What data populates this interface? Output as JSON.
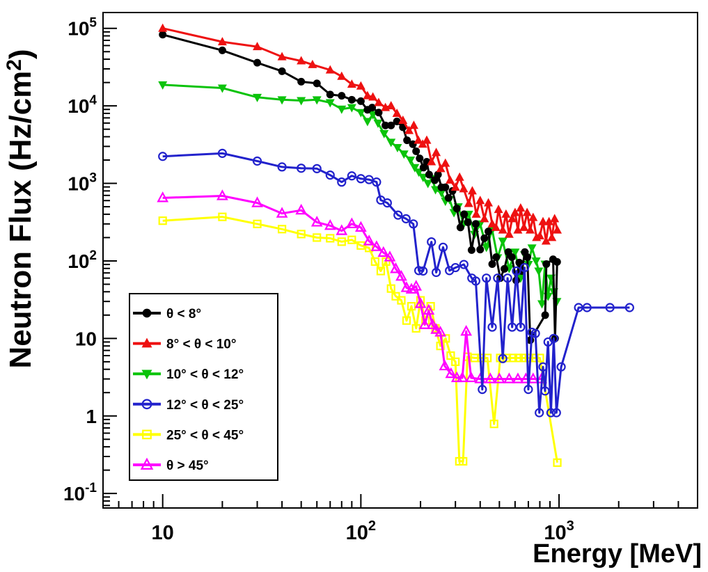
{
  "page": {
    "background": "#ffffff"
  },
  "chart_data": {
    "type": "line",
    "title": "",
    "xlabel": "Energy [MeV]",
    "ylabel": "Neutron Flux (Hz/cm²)",
    "x_scale": "log",
    "y_scale": "log",
    "xlim": [
      5,
      5000
    ],
    "ylim": [
      0.065,
      160000
    ],
    "grid": false,
    "legend_position": "lower-left",
    "frame_color": "#000000",
    "x_ticks": [
      {
        "value": 10,
        "base": "10",
        "exp": ""
      },
      {
        "value": 100,
        "base": "10",
        "exp": "2"
      },
      {
        "value": 1000,
        "base": "10",
        "exp": "3"
      }
    ],
    "y_ticks": [
      {
        "value": 100000,
        "base": "10",
        "exp": "5"
      },
      {
        "value": 10000,
        "base": "10",
        "exp": "4"
      },
      {
        "value": 1000,
        "base": "10",
        "exp": "3"
      },
      {
        "value": 100,
        "base": "10",
        "exp": "2"
      },
      {
        "value": 10,
        "base": "10",
        "exp": ""
      },
      {
        "value": 1,
        "base": "1",
        "exp": ""
      },
      {
        "value": 0.1,
        "base": "10",
        "exp": "-1"
      }
    ],
    "series": [
      {
        "id": "theta-lt-8",
        "label": "θ < 8°",
        "color": "#000000",
        "marker": "filled-circle",
        "points": [
          [
            10,
            83000
          ],
          [
            20,
            52000
          ],
          [
            30,
            36000
          ],
          [
            40,
            28000
          ],
          [
            50,
            20500
          ],
          [
            60,
            19500
          ],
          [
            70,
            14000
          ],
          [
            80,
            13500
          ],
          [
            90,
            12000
          ],
          [
            100,
            11500
          ],
          [
            108,
            8900
          ],
          [
            114,
            9500
          ],
          [
            123,
            8200
          ],
          [
            133,
            5600
          ],
          [
            142,
            5600
          ],
          [
            152,
            6300
          ],
          [
            163,
            5300
          ],
          [
            171,
            3600
          ],
          [
            183,
            3200
          ],
          [
            190,
            2600
          ],
          [
            198,
            2100
          ],
          [
            207,
            1600
          ],
          [
            215,
            1900
          ],
          [
            221,
            1300
          ],
          [
            236,
            1100
          ],
          [
            245,
            1300
          ],
          [
            255,
            890
          ],
          [
            267,
            890
          ],
          [
            277,
            650
          ],
          [
            290,
            800
          ],
          [
            305,
            475
          ],
          [
            318,
            270
          ],
          [
            332,
            400
          ],
          [
            347,
            315
          ],
          [
            362,
            138
          ],
          [
            380,
            300
          ],
          [
            400,
            140
          ],
          [
            420,
            196
          ],
          [
            440,
            240
          ],
          [
            460,
            91
          ],
          [
            482,
            112
          ],
          [
            505,
            60
          ],
          [
            530,
            79
          ],
          [
            555,
            130
          ],
          [
            578,
            112
          ],
          [
            608,
            56
          ],
          [
            630,
            95
          ],
          [
            650,
            74
          ],
          [
            672,
            130
          ],
          [
            692,
            112
          ],
          [
            716,
            9.5
          ],
          [
            851,
            20
          ],
          [
            863,
            91
          ],
          [
            933,
            105
          ],
          [
            955,
            10
          ],
          [
            978,
            97
          ]
        ]
      },
      {
        "id": "theta-8-10",
        "label": "8° < θ < 10°",
        "color": "#ee1111",
        "marker": "filled-triangle-up",
        "points": [
          [
            10,
            100000
          ],
          [
            20,
            67000
          ],
          [
            30,
            58000
          ],
          [
            40,
            43000
          ],
          [
            50,
            38000
          ],
          [
            57,
            34000
          ],
          [
            70,
            29000
          ],
          [
            80,
            24000
          ],
          [
            90,
            19000
          ],
          [
            100,
            18000
          ],
          [
            108,
            13500
          ],
          [
            115,
            13000
          ],
          [
            123,
            11000
          ],
          [
            133,
            9500
          ],
          [
            142,
            10000
          ],
          [
            152,
            8000
          ],
          [
            163,
            6500
          ],
          [
            175,
            4800
          ],
          [
            185,
            5600
          ],
          [
            195,
            3600
          ],
          [
            205,
            3200
          ],
          [
            215,
            3600
          ],
          [
            227,
            1900
          ],
          [
            240,
            2500
          ],
          [
            253,
            1550
          ],
          [
            267,
            1820
          ],
          [
            282,
            1100
          ],
          [
            300,
            890
          ],
          [
            315,
            1200
          ],
          [
            330,
            850
          ],
          [
            350,
            550
          ],
          [
            365,
            800
          ],
          [
            382,
            400
          ],
          [
            400,
            600
          ],
          [
            420,
            350
          ],
          [
            440,
            560
          ],
          [
            460,
            300
          ],
          [
            480,
            270
          ],
          [
            495,
            460
          ],
          [
            520,
            250
          ],
          [
            540,
            400
          ],
          [
            560,
            220
          ],
          [
            580,
            350
          ],
          [
            600,
            420
          ],
          [
            620,
            250
          ],
          [
            640,
            480
          ],
          [
            665,
            270
          ],
          [
            690,
            420
          ],
          [
            715,
            250
          ],
          [
            740,
            363
          ],
          [
            770,
            200
          ],
          [
            800,
            210
          ],
          [
            830,
            320
          ],
          [
            860,
            180
          ],
          [
            890,
            320
          ],
          [
            920,
            200
          ],
          [
            950,
            350
          ],
          [
            980,
            250
          ]
        ]
      },
      {
        "id": "theta-10-12",
        "label": "10° < θ < 12°",
        "color": "#0bc30b",
        "marker": "filled-triangle-down",
        "points": [
          [
            10,
            18700
          ],
          [
            20,
            17000
          ],
          [
            30,
            12900
          ],
          [
            40,
            12000
          ],
          [
            50,
            11700
          ],
          [
            60,
            12000
          ],
          [
            70,
            11000
          ],
          [
            80,
            9100
          ],
          [
            90,
            9500
          ],
          [
            100,
            8200
          ],
          [
            108,
            6300
          ],
          [
            115,
            7700
          ],
          [
            122,
            6000
          ],
          [
            131,
            4400
          ],
          [
            142,
            3400
          ],
          [
            153,
            2900
          ],
          [
            165,
            2400
          ],
          [
            178,
            2000
          ],
          [
            187,
            1600
          ],
          [
            196,
            1400
          ],
          [
            206,
            1200
          ],
          [
            218,
            1000
          ],
          [
            229,
            1150
          ],
          [
            238,
            830
          ],
          [
            255,
            760
          ],
          [
            267,
            590
          ],
          [
            280,
            620
          ],
          [
            295,
            420
          ],
          [
            310,
            500
          ],
          [
            330,
            300
          ],
          [
            350,
            400
          ],
          [
            375,
            220
          ],
          [
            400,
            300
          ],
          [
            430,
            150
          ],
          [
            460,
            250
          ],
          [
            490,
            110
          ],
          [
            520,
            180
          ],
          [
            560,
            80
          ],
          [
            600,
            130
          ],
          [
            640,
            60
          ],
          [
            670,
            120
          ],
          [
            700,
            90
          ],
          [
            730,
            147
          ],
          [
            766,
            100
          ],
          [
            790,
            74
          ],
          [
            820,
            28
          ],
          [
            850,
            91
          ],
          [
            880,
            35
          ],
          [
            910,
            60
          ],
          [
            940,
            40
          ],
          [
            975,
            30
          ]
        ]
      },
      {
        "id": "theta-12-25",
        "label": "12° < θ < 25°",
        "color": "#2222cc",
        "marker": "open-circle",
        "points": [
          [
            10,
            2230
          ],
          [
            20,
            2440
          ],
          [
            30,
            1940
          ],
          [
            40,
            1630
          ],
          [
            50,
            1570
          ],
          [
            60,
            1550
          ],
          [
            70,
            1280
          ],
          [
            80,
            1040
          ],
          [
            90,
            1250
          ],
          [
            100,
            1150
          ],
          [
            110,
            1120
          ],
          [
            120,
            1040
          ],
          [
            126,
            610
          ],
          [
            136,
            560
          ],
          [
            154,
            390
          ],
          [
            169,
            350
          ],
          [
            184,
            300
          ],
          [
            196,
            75
          ],
          [
            206,
            74
          ],
          [
            227,
            176
          ],
          [
            240,
            71
          ],
          [
            260,
            150
          ],
          [
            280,
            75
          ],
          [
            300,
            82
          ],
          [
            331,
            90
          ],
          [
            363,
            60
          ],
          [
            380,
            55
          ],
          [
            410,
            2.2
          ],
          [
            430,
            60
          ],
          [
            460,
            14
          ],
          [
            490,
            60
          ],
          [
            520,
            5.5
          ],
          [
            550,
            60
          ],
          [
            580,
            14
          ],
          [
            610,
            74
          ],
          [
            640,
            14
          ],
          [
            670,
            82
          ],
          [
            700,
            2.2
          ],
          [
            730,
            12
          ],
          [
            760,
            11.6
          ],
          [
            795,
            1.1
          ],
          [
            830,
            4.3
          ],
          [
            850,
            2.1
          ],
          [
            880,
            9
          ],
          [
            910,
            1.1
          ],
          [
            940,
            10
          ],
          [
            970,
            1.1
          ],
          [
            1025,
            4.3
          ],
          [
            1255,
            25
          ],
          [
            1384,
            25
          ],
          [
            1807,
            25
          ],
          [
            2270,
            25
          ]
        ]
      },
      {
        "id": "theta-25-45",
        "label": "25° < θ < 45°",
        "color": "#ffff00",
        "marker": "open-square",
        "points": [
          [
            10,
            330
          ],
          [
            20,
            370
          ],
          [
            30,
            300
          ],
          [
            40,
            257
          ],
          [
            50,
            222
          ],
          [
            60,
            200
          ],
          [
            70,
            196
          ],
          [
            80,
            177
          ],
          [
            90,
            187
          ],
          [
            100,
            158
          ],
          [
            110,
            147
          ],
          [
            118,
            98
          ],
          [
            126,
            74
          ],
          [
            134,
            98
          ],
          [
            142,
            44
          ],
          [
            150,
            35
          ],
          [
            160,
            31
          ],
          [
            170,
            17
          ],
          [
            180,
            26
          ],
          [
            190,
            13.5
          ],
          [
            200,
            31
          ],
          [
            212,
            17
          ],
          [
            225,
            26
          ],
          [
            238,
            13.5
          ],
          [
            252,
            8
          ],
          [
            268,
            10
          ],
          [
            284,
            6
          ],
          [
            300,
            5
          ],
          [
            314,
            0.26
          ],
          [
            328,
            0.26
          ],
          [
            345,
            5.8
          ],
          [
            375,
            5.6
          ],
          [
            405,
            5.6
          ],
          [
            435,
            5.6
          ],
          [
            470,
            0.79
          ],
          [
            505,
            5.6
          ],
          [
            545,
            5.6
          ],
          [
            585,
            5.6
          ],
          [
            625,
            5.6
          ],
          [
            665,
            5.6
          ],
          [
            705,
            5.6
          ],
          [
            750,
            5.6
          ],
          [
            800,
            5.6
          ],
          [
            980,
            0.25
          ]
        ]
      },
      {
        "id": "theta-gt-45",
        "label": "θ > 45°",
        "color": "#ff00ff",
        "marker": "open-triangle-up",
        "points": [
          [
            10,
            650
          ],
          [
            20,
            690
          ],
          [
            30,
            560
          ],
          [
            40,
            410
          ],
          [
            50,
            450
          ],
          [
            60,
            315
          ],
          [
            70,
            285
          ],
          [
            80,
            245
          ],
          [
            90,
            300
          ],
          [
            100,
            270
          ],
          [
            110,
            180
          ],
          [
            120,
            152
          ],
          [
            130,
            128
          ],
          [
            140,
            112
          ],
          [
            150,
            79
          ],
          [
            160,
            63
          ],
          [
            170,
            45
          ],
          [
            180,
            43
          ],
          [
            190,
            47
          ],
          [
            200,
            28
          ],
          [
            210,
            15
          ],
          [
            220,
            23
          ],
          [
            230,
            15
          ],
          [
            240,
            13
          ],
          [
            252,
            12
          ],
          [
            265,
            4.4
          ],
          [
            285,
            3.5
          ],
          [
            305,
            3.1
          ],
          [
            325,
            3.1
          ],
          [
            340,
            12.3
          ],
          [
            360,
            3.1
          ],
          [
            400,
            3
          ],
          [
            450,
            3
          ],
          [
            500,
            3
          ],
          [
            560,
            3
          ],
          [
            620,
            3
          ],
          [
            680,
            3
          ],
          [
            740,
            3
          ],
          [
            815,
            3
          ]
        ]
      }
    ]
  }
}
